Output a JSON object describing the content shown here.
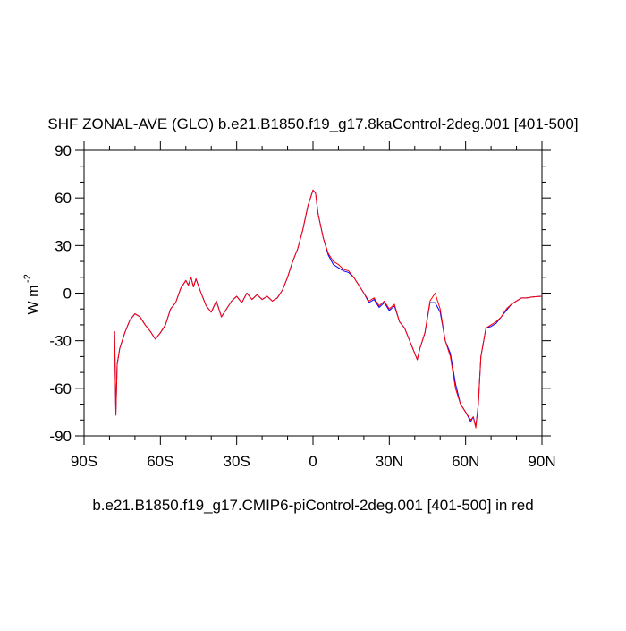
{
  "chart_data": {
    "type": "line",
    "title": "SHF ZONAL-AVE (GLO) b.e21.B1850.f19_g17.8kaControl-2deg.001 [401-500]",
    "xlabel": "b.e21.B1850.f19_g17.CMIP6-piControl-2deg.001 [401-500] in red",
    "ylabel": "W m",
    "ylabel_superscript": "-2",
    "x": [
      -78,
      -77.5,
      -77,
      -76,
      -74,
      -72,
      -70,
      -68,
      -66,
      -64,
      -62,
      -60,
      -58,
      -56,
      -54,
      -52,
      -50,
      -49,
      -48,
      -47,
      -46,
      -44,
      -42,
      -40,
      -38,
      -36,
      -34,
      -32,
      -30,
      -28,
      -26,
      -24,
      -22,
      -20,
      -18,
      -16,
      -14,
      -12,
      -10,
      -8,
      -6,
      -4,
      -2,
      0,
      1,
      2,
      4,
      6,
      8,
      10,
      12,
      14,
      16,
      18,
      20,
      22,
      24,
      26,
      28,
      30,
      32,
      34,
      36,
      38,
      40,
      41,
      42,
      44,
      46,
      48,
      50,
      52,
      54,
      56,
      58,
      60,
      62,
      63,
      64,
      65,
      66,
      68,
      70,
      72,
      74,
      76,
      78,
      80,
      82,
      84,
      86,
      88,
      90
    ],
    "series": [
      {
        "color": "#0000ff",
        "values": [
          -24,
          -76,
          -45,
          -35,
          -25,
          -17,
          -13,
          -15,
          -20,
          -24,
          -29,
          -25,
          -20,
          -10,
          -6,
          3,
          8,
          5,
          10,
          4,
          9,
          0,
          -8,
          -12,
          -5,
          -15,
          -10,
          -5,
          -2,
          -6,
          0,
          -4,
          -1,
          -4,
          -2,
          -5,
          -3,
          2,
          10,
          20,
          28,
          40,
          55,
          65,
          63,
          50,
          35,
          24,
          18,
          16,
          14,
          13,
          10,
          5,
          0,
          -6,
          -4,
          -9,
          -6,
          -11,
          -8,
          -18,
          -22,
          -30,
          -38,
          -42,
          -35,
          -25,
          -6,
          -6,
          -12,
          -30,
          -38,
          -57,
          -70,
          -75,
          -81,
          -78,
          -84,
          -70,
          -40,
          -22,
          -21,
          -19,
          -15,
          -11,
          -7,
          -5,
          -3,
          -3,
          -2.5,
          -2.2,
          -2
        ]
      },
      {
        "color": "#ff0000",
        "values": [
          -24,
          -77,
          -45,
          -35,
          -25,
          -17,
          -13,
          -15,
          -20,
          -24,
          -29,
          -25,
          -20,
          -10,
          -6,
          3,
          8,
          5,
          10,
          4,
          9,
          0,
          -8,
          -12,
          -5,
          -15,
          -10,
          -5,
          -2,
          -6,
          0,
          -4,
          -1,
          -4,
          -2,
          -5,
          -3,
          2,
          10,
          20,
          28,
          40,
          55,
          65,
          63,
          50,
          35,
          25,
          20,
          18,
          15,
          14,
          10,
          5,
          0,
          -5,
          -3,
          -8,
          -5,
          -10,
          -7,
          -18,
          -22,
          -30,
          -38,
          -42,
          -35,
          -25,
          -5,
          0,
          -10,
          -30,
          -40,
          -60,
          -70,
          -75,
          -80,
          -78,
          -85,
          -70,
          -40,
          -22,
          -20,
          -18,
          -15,
          -10,
          -7,
          -5,
          -3,
          -3,
          -2.5,
          -2.2,
          -2
        ]
      }
    ],
    "xlim": [
      -90,
      90
    ],
    "xticks": [
      {
        "value": -90,
        "label": "90S"
      },
      {
        "value": -60,
        "label": "60S"
      },
      {
        "value": -30,
        "label": "30S"
      },
      0,
      {
        "value": 30,
        "label": "30N"
      },
      {
        "value": 60,
        "label": "60N"
      },
      {
        "value": 90,
        "label": "90N"
      }
    ],
    "xminorticks": [
      -80,
      -70,
      -50,
      -40,
      -20,
      -10,
      10,
      20,
      40,
      50,
      70,
      80
    ],
    "ylim": [
      -90,
      90
    ],
    "yticks": [
      -90,
      -60,
      -30,
      0,
      30,
      60,
      90
    ],
    "yminorticks": [
      -80,
      -70,
      -50,
      -40,
      -20,
      -10,
      10,
      20,
      40,
      50,
      70,
      80
    ],
    "grid": false
  }
}
